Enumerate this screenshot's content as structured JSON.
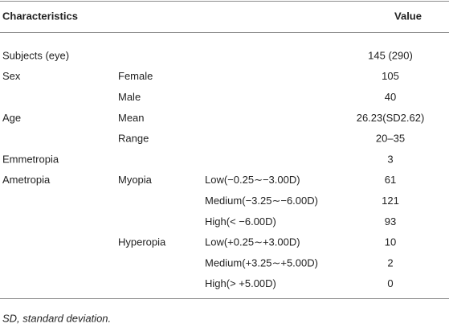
{
  "table": {
    "header": [
      "Characteristics",
      "Value"
    ],
    "rows": [
      [
        "Subjects (eye)",
        null,
        null,
        "145 (290)"
      ],
      [
        "Sex",
        "Female",
        null,
        "105"
      ],
      [
        null,
        "Male",
        null,
        "40"
      ],
      [
        "Age",
        "Mean",
        null,
        "26.23(SD2.62)"
      ],
      [
        null,
        "Range",
        null,
        "20–35"
      ],
      [
        "Emmetropia",
        null,
        null,
        "3"
      ],
      [
        "Ametropia",
        "Myopia",
        "Low(−0.25∼−3.00D)",
        "61"
      ],
      [
        null,
        null,
        "Medium(−3.25∼−6.00D)",
        "121"
      ],
      [
        null,
        null,
        "High(< −6.00D)",
        "93"
      ],
      [
        null,
        "Hyperopia",
        "Low(+0.25∼+3.00D)",
        "10"
      ],
      [
        null,
        null,
        "Medium(+3.25∼+5.00D)",
        "2"
      ],
      [
        null,
        null,
        "High(> +5.00D)",
        "0"
      ]
    ],
    "footnote": "SD, standard deviation."
  }
}
